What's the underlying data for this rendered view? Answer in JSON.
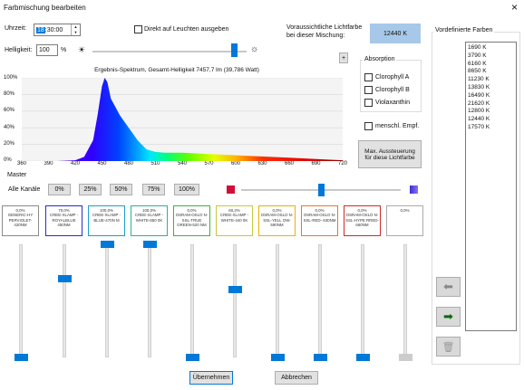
{
  "window": {
    "title": "Farbmischung bearbeiten",
    "close_glyph": "×"
  },
  "top": {
    "uhrzeit_label": "Uhrzeit:",
    "time_hour": "18",
    "time_rest": ":30:00",
    "direkt_label": "Direkt auf Leuchten ausgeben",
    "helligkeit_label": "Helligkeit:",
    "helligkeit_value": "100",
    "percent": "%",
    "brightness_level": 0.92,
    "forecast_label_1": "Voraussichtliche Lichtfarbe",
    "forecast_label_2": "bei dieser Mischung:",
    "forecast_value": "12440 K",
    "forecast_color": "#a7c8e8",
    "plus": "+"
  },
  "absorption": {
    "title": "Absorption",
    "items": [
      "Clorophyll A",
      "Clorophyll B",
      "Violaxanthin"
    ],
    "menschl": "menschl. Empf.",
    "max_button_1": "Max. Aussteuerung",
    "max_button_2": "für diese Lichtfarbe"
  },
  "chart_data": {
    "type": "area",
    "title": "Ergebnis-Spektrum, Gesamt-Helligkeit 7457,7 lm (39,786 Watt)",
    "x_ticks": [
      "360",
      "390",
      "420",
      "450",
      "480",
      "510",
      "540",
      "570",
      "600",
      "630",
      "660",
      "690",
      "720"
    ],
    "y_ticks": [
      "100%",
      "80%",
      "60%",
      "40%",
      "20%",
      "0%"
    ],
    "xlim": [
      360,
      720
    ],
    "ylim": [
      0,
      100
    ],
    "x": [
      360,
      400,
      420,
      430,
      440,
      445,
      450,
      453,
      456,
      460,
      465,
      470,
      480,
      490,
      500,
      510,
      520,
      530,
      540,
      560,
      580,
      600,
      620,
      640,
      660,
      680,
      700,
      720
    ],
    "values": [
      0,
      0,
      1,
      5,
      25,
      55,
      90,
      100,
      95,
      75,
      65,
      55,
      40,
      25,
      14,
      11,
      10,
      10,
      10,
      9,
      8,
      7,
      6,
      5,
      4,
      3,
      2,
      1
    ]
  },
  "master": {
    "title": "Master",
    "alle_kanaele": "Alle Kanäle",
    "presets": [
      "0%",
      "25%",
      "50%",
      "75%",
      "100%"
    ],
    "level": 0.5,
    "left_swatch": "#d0103a",
    "right_swatch": "#3a30d8"
  },
  "channels": [
    {
      "pct": "0,0%",
      "name": "GENERIC-HY PERVIOLET-420NM",
      "level": 0,
      "border": "#8a8a8a"
    },
    {
      "pct": "70,0%",
      "name": "CREE-XLAMP -ROYALBLUE 450NM",
      "level": 0.7,
      "border": "#2c2cc8"
    },
    {
      "pct": "100,0%",
      "name": "CREE-XLAMP -BLUE-470N M",
      "level": 1.0,
      "border": "#1aa0c8"
    },
    {
      "pct": "100,0%",
      "name": "CREE-XLAMP -WHITE-650 0K",
      "level": 1.0,
      "border": "#2cb48c"
    },
    {
      "pct": "0,0%",
      "name": "OSRAM-OSLO N-SSL-TRUE GREEN-520 NM",
      "level": 0,
      "border": "#3cb43c"
    },
    {
      "pct": "60,2%",
      "name": "CREE-XLAMP -WHITE-440 0K",
      "level": 0.6,
      "border": "#c8c83c"
    },
    {
      "pct": "0,0%",
      "name": "OSRAM-OSLO N-SSL-YELL OW-590NM",
      "level": 0,
      "border": "#e6b400"
    },
    {
      "pct": "0,0%",
      "name": "OSRAM-OSLO N-SSL-RED- 630NM",
      "level": 0,
      "border": "#e67828"
    },
    {
      "pct": "0,0%",
      "name": "OSRAM-OSLO N-SSL-HYPE RRED-660NM",
      "level": 0,
      "border": "#d22828"
    },
    {
      "pct": "0,0%",
      "name": "",
      "level": 0,
      "border": "#aaaaaa",
      "disabled": true
    }
  ],
  "right": {
    "title": "Vordefinierte Farben",
    "presets": [
      "1690 K",
      "3790 K",
      "6160 K",
      "8650 K",
      "11230 K",
      "13830 K",
      "16490 K",
      "21620 K",
      "12800 K",
      "12440 K",
      "17570 K"
    ]
  },
  "footer": {
    "ok": "Übernehmen",
    "cancel": "Abbrechen"
  }
}
